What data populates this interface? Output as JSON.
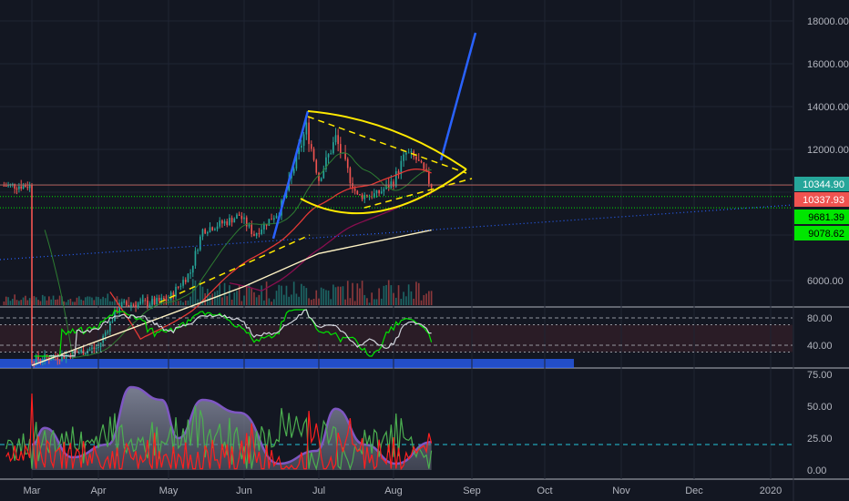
{
  "chart_data": [
    {
      "type": "candlestick",
      "panel": "price",
      "months": [
        "Mar",
        "Apr",
        "May",
        "Jun",
        "Jul",
        "Aug",
        "Sep",
        "Oct",
        "Nov",
        "Dec",
        "2020"
      ],
      "y_ticks": [
        "18000.00",
        "16000.00",
        "14000.00",
        "12000.00",
        "6000.00"
      ],
      "price_tags": [
        {
          "label": "10344.90",
          "value": 10344.9,
          "color": "#26a69a"
        },
        {
          "label": "10337.93",
          "value": 10337.93,
          "color": "#ef5350"
        },
        {
          "label": "9681.39",
          "value": 9681.39,
          "color": "#00e600"
        },
        {
          "label": "9078.62",
          "value": 9078.62,
          "color": "#00e600"
        }
      ],
      "horizontal_levels": [
        10344.9,
        10337.93,
        9681.39,
        9078.62
      ],
      "close_path": [
        [
          "2019-03-01",
          3820
        ],
        [
          "2019-03-15",
          3900
        ],
        [
          "2019-04-01",
          4100
        ],
        [
          "2019-04-10",
          5200
        ],
        [
          "2019-04-25",
          5300
        ],
        [
          "2019-05-01",
          5400
        ],
        [
          "2019-05-10",
          6300
        ],
        [
          "2019-05-15",
          8000
        ],
        [
          "2019-05-25",
          8400
        ],
        [
          "2019-05-30",
          8700
        ],
        [
          "2019-06-05",
          7800
        ],
        [
          "2019-06-15",
          8900
        ],
        [
          "2019-06-26",
          13000
        ],
        [
          "2019-07-01",
          10600
        ],
        [
          "2019-07-08",
          12500
        ],
        [
          "2019-07-17",
          9700
        ],
        [
          "2019-07-25",
          9800
        ],
        [
          "2019-08-01",
          10500
        ],
        [
          "2019-08-06",
          11800
        ],
        [
          "2019-08-10",
          11500
        ],
        [
          "2019-08-16",
          10300
        ]
      ],
      "ma_slow": [
        [
          "2019-03-01",
          3700
        ],
        [
          "2019-06-01",
          5800
        ],
        [
          "2019-07-01",
          7000
        ],
        [
          "2019-08-16",
          8000
        ]
      ]
    },
    {
      "type": "line",
      "panel": "oscillator",
      "y_ticks": [
        "80.00",
        "40.00"
      ],
      "levels": [
        80,
        70,
        40,
        30
      ]
    },
    {
      "type": "area",
      "panel": "indicator",
      "y_ticks": [
        "75.00",
        "50.00",
        "25.00",
        "0.00"
      ],
      "level": 20,
      "area_series": [
        [
          "2019-03-01",
          20
        ],
        [
          "2019-03-07",
          33
        ],
        [
          "2019-03-20",
          10
        ],
        [
          "2019-04-05",
          20
        ],
        [
          "2019-04-15",
          65
        ],
        [
          "2019-04-28",
          55
        ],
        [
          "2019-05-05",
          25
        ],
        [
          "2019-05-15",
          55
        ],
        [
          "2019-05-30",
          45
        ],
        [
          "2019-06-15",
          5
        ],
        [
          "2019-06-30",
          15
        ],
        [
          "2019-07-08",
          48
        ],
        [
          "2019-07-20",
          20
        ],
        [
          "2019-08-02",
          5
        ],
        [
          "2019-08-16",
          22
        ]
      ]
    }
  ],
  "colors": {
    "background": "#131722",
    "grid": "#1f2433",
    "up": "#26a69a",
    "down": "#ef5350",
    "wedge": "#ffe900",
    "trend": "#2962ff",
    "level_green": "#00e600"
  }
}
